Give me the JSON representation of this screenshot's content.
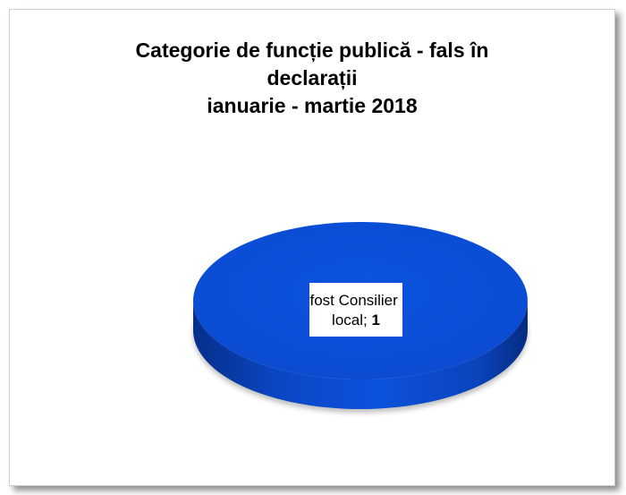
{
  "chart_data": {
    "type": "pie",
    "title_lines": [
      "Categorie de funcție publică - fals în",
      "declarații",
      "ianuarie - martie 2018"
    ],
    "categories": [
      "fost Consilier local"
    ],
    "values": [
      1
    ],
    "data_labels": [
      {
        "line1": "fost Consilier",
        "line2": "local; ",
        "value": "1"
      }
    ],
    "colors": [
      "#0b4fd6"
    ],
    "style": "3d"
  }
}
